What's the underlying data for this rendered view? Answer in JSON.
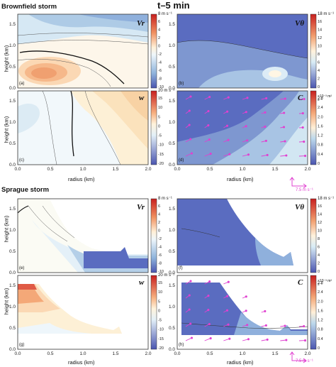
{
  "figure": {
    "title": "t–5 min",
    "sections": [
      "Brownfield storm",
      "Sprague storm"
    ],
    "xlabel": "radius (km)",
    "ylabel": "height (km)",
    "x_ticks": [
      "0.0",
      "0.5",
      "1.0",
      "1.5",
      "2.0"
    ],
    "y_ticks": [
      "0.0",
      "0.5",
      "1.0",
      "1.5"
    ],
    "panel_letters": [
      "(a)",
      "(b)",
      "(c)",
      "(d)",
      "(e)",
      "(f)",
      "(g)",
      "(h)"
    ],
    "variables": {
      "vr": "Vr",
      "vt": "Vθ",
      "w": "w",
      "c": "C"
    },
    "colorbars": {
      "vr": {
        "unit": "8 m s⁻¹",
        "ticks": [
          "6",
          "4",
          "2",
          "0",
          "-2",
          "-4",
          "-6",
          "-8",
          "-10"
        ]
      },
      "vt": {
        "unit": "18 m s⁻¹",
        "ticks": [
          "16",
          "14",
          "12",
          "10",
          "8",
          "6",
          "4",
          "2",
          "0"
        ]
      },
      "w": {
        "unit": "20 m s⁻¹",
        "ticks": [
          "15",
          "10",
          "5",
          "0",
          "-5",
          "-10",
          "-15",
          "-20"
        ]
      },
      "c": {
        "unit": "×10⁻³ m² s⁻¹",
        "ticks": [
          "2.8",
          "2.4",
          "2.0",
          "1.6",
          "1.2",
          "0.8",
          "0.4",
          "0"
        ]
      }
    },
    "vector_scale": "7.5 m s⁻¹",
    "colors": {
      "vector": "#e040d0",
      "warm": "#e8745a",
      "cool": "#4e63b8"
    }
  }
}
